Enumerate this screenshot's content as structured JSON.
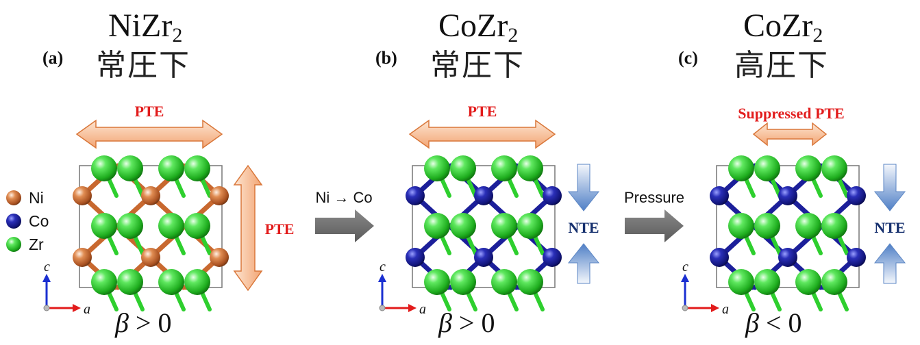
{
  "panels": [
    {
      "label": "(a)",
      "compound": "NiZr",
      "sub": "2",
      "condition": "常圧下",
      "effect_h": "PTE",
      "effect_v": "PTE",
      "beta_sym": "β",
      "beta_rel": "> 0",
      "metal": "Ni"
    },
    {
      "label": "(b)",
      "compound": "CoZr",
      "sub": "2",
      "condition": "常圧下",
      "effect_h": "PTE",
      "effect_v": "NTE",
      "beta_sym": "β",
      "beta_rel": "> 0",
      "metal": "Co"
    },
    {
      "label": "(c)",
      "compound": "CoZr",
      "sub": "2",
      "condition": "高圧下",
      "effect_h": "Suppressed PTE",
      "effect_v": "NTE",
      "beta_sym": "β",
      "beta_rel": "< 0",
      "metal": "Co"
    }
  ],
  "transitions": [
    {
      "label": "Ni → Co"
    },
    {
      "label": "Pressure"
    }
  ],
  "legend": [
    {
      "label": "Ni",
      "color": "#d4763a"
    },
    {
      "label": "Co",
      "color": "#1c1f9a"
    },
    {
      "label": "Zr",
      "color": "#2ecf2e"
    }
  ],
  "axes": {
    "c": "c",
    "a": "a"
  },
  "colors": {
    "ni": "#d4763a",
    "co": "#1c1f9a",
    "zr": "#2ecf2e",
    "pte": "#e21b1b",
    "nte": "#16306e"
  }
}
